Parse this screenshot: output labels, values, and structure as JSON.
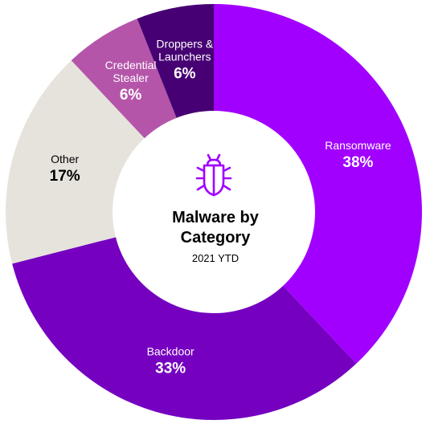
{
  "chart_data": {
    "type": "pie",
    "title": "Malware by Category",
    "subtitle": "2021 YTD",
    "unit": "%",
    "slices": [
      {
        "label": [
          "Ransomware"
        ],
        "value": 38,
        "display": "38%",
        "color": "#a100ff",
        "text_color": "#ffffff"
      },
      {
        "label": [
          "Backdoor"
        ],
        "value": 33,
        "display": "33%",
        "color": "#7500c0",
        "text_color": "#ffffff"
      },
      {
        "label": [
          "Other"
        ],
        "value": 17,
        "display": "17%",
        "color": "#e6e3dc",
        "text_color": "#000000"
      },
      {
        "label": [
          "Credential",
          "Stealer"
        ],
        "value": 6,
        "display": "6%",
        "color": "#b455aa",
        "text_color": "#ffffff"
      },
      {
        "label": [
          "Droppers &",
          "Launchers"
        ],
        "value": 6,
        "display": "6%",
        "color": "#460073",
        "text_color": "#ffffff"
      }
    ],
    "center": {
      "title_lines": [
        "Malware by",
        "Category"
      ],
      "subtitle": "2021 YTD",
      "icon": "bug-icon",
      "icon_color": "#a100ff"
    }
  }
}
